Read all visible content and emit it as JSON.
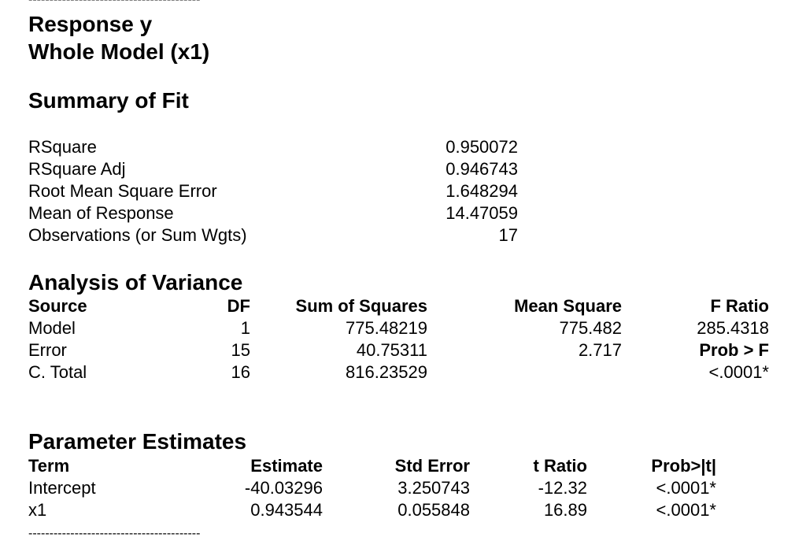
{
  "separator": "-----------------------------------------",
  "header": {
    "response": "Response y",
    "model": "Whole Model (x1)"
  },
  "summary_of_fit": {
    "title": "Summary of Fit",
    "rows": [
      {
        "label": "RSquare",
        "value": "0.950072"
      },
      {
        "label": "RSquare Adj",
        "value": "0.946743"
      },
      {
        "label": "Root Mean Square Error",
        "value": "1.648294"
      },
      {
        "label": "Mean of Response",
        "value": "14.47059"
      },
      {
        "label": "Observations (or Sum Wgts)",
        "value": "17"
      }
    ]
  },
  "anova": {
    "title": "Analysis of Variance",
    "headers": {
      "source": "Source",
      "df": "DF",
      "ss": "Sum of Squares",
      "ms": "Mean Square",
      "f": "F Ratio"
    },
    "rows": [
      {
        "source": "Model",
        "df": "1",
        "ss": "775.48219",
        "ms": "775.482",
        "f": "285.4318"
      },
      {
        "source": "Error",
        "df": "15",
        "ss": "40.75311",
        "ms": "2.717",
        "f": "Prob > F"
      },
      {
        "source": "C. Total",
        "df": "16",
        "ss": "816.23529",
        "ms": "",
        "f": "<.0001*"
      }
    ]
  },
  "parameter_estimates": {
    "title": "Parameter Estimates",
    "headers": {
      "term": "Term",
      "estimate": "Estimate",
      "std_error": "Std Error",
      "t_ratio": "t Ratio",
      "prob": "Prob>|t|"
    },
    "rows": [
      {
        "term": "Intercept",
        "estimate": "-40.03296",
        "std_error": "3.250743",
        "t_ratio": "-12.32",
        "prob": "<.0001*"
      },
      {
        "term": "x1",
        "estimate": "0.943544",
        "std_error": "0.055848",
        "t_ratio": "16.89",
        "prob": "<.0001*"
      }
    ]
  }
}
